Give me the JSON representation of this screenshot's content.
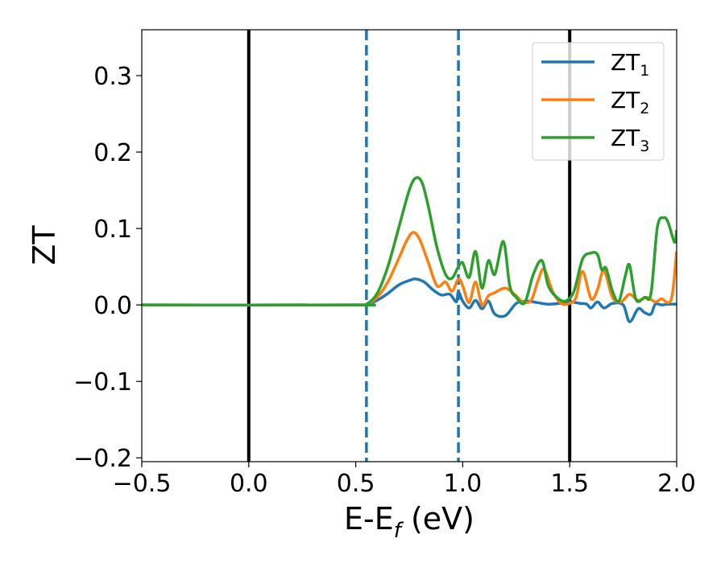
{
  "chart_data": {
    "type": "line",
    "xlabel": "E-E",
    "xlabel_sub": "f",
    "xlabel_unit": " (eV)",
    "ylabel": "ZT",
    "xlim": [
      -0.5,
      2.0
    ],
    "ylim": [
      -0.205,
      0.36
    ],
    "xticks": [
      -0.5,
      0.0,
      0.5,
      1.0,
      1.5,
      2.0
    ],
    "xtick_labels": [
      "−0.5",
      "0.0",
      "0.5",
      "1.0",
      "1.5",
      "2.0"
    ],
    "yticks": [
      -0.2,
      -0.1,
      0.0,
      0.1,
      0.2,
      0.3
    ],
    "ytick_labels": [
      "−0.2",
      "−0.1",
      "0.0",
      "0.1",
      "0.2",
      "0.3"
    ],
    "grid": false,
    "legend_position": "top-right",
    "vlines": [
      {
        "x": 0.0,
        "style": "solid",
        "color": "#000000"
      },
      {
        "x": 1.5,
        "style": "solid",
        "color": "#000000"
      },
      {
        "x": 0.55,
        "style": "dashed",
        "color": "#1f77b4"
      },
      {
        "x": 0.98,
        "style": "dashed",
        "color": "#1f77b4"
      }
    ],
    "series": [
      {
        "name": "ZT",
        "name_sub": "1",
        "color": "#1f77b4",
        "x": [
          -0.5,
          0.5,
          0.55,
          0.6,
          0.65,
          0.7,
          0.75,
          0.78,
          0.82,
          0.86,
          0.9,
          0.94,
          0.97,
          0.98,
          1.0,
          1.03,
          1.06,
          1.09,
          1.12,
          1.15,
          1.2,
          1.25,
          1.3,
          1.35,
          1.4,
          1.45,
          1.5,
          1.55,
          1.58,
          1.6,
          1.63,
          1.66,
          1.7,
          1.75,
          1.78,
          1.82,
          1.85,
          1.88,
          1.9,
          1.93,
          1.96,
          2.0
        ],
        "y": [
          0.0,
          0.0,
          0.001,
          0.006,
          0.015,
          0.026,
          0.032,
          0.034,
          0.03,
          0.02,
          0.013,
          0.014,
          0.004,
          0.017,
          0.005,
          -0.004,
          0.006,
          -0.005,
          0.005,
          -0.012,
          -0.014,
          0.002,
          0.005,
          0.003,
          0.001,
          0.002,
          0.004,
          0.002,
          0.001,
          -0.004,
          0.004,
          -0.004,
          0.002,
          0.0,
          -0.022,
          -0.005,
          -0.01,
          -0.012,
          0.001,
          0.0,
          0.001,
          0.001
        ]
      },
      {
        "name": "ZT",
        "name_sub": "2",
        "color": "#ff7f0e",
        "x": [
          -0.5,
          0.5,
          0.55,
          0.6,
          0.65,
          0.7,
          0.74,
          0.77,
          0.8,
          0.84,
          0.88,
          0.92,
          0.95,
          0.98,
          1.0,
          1.03,
          1.06,
          1.09,
          1.12,
          1.15,
          1.2,
          1.25,
          1.28,
          1.32,
          1.35,
          1.38,
          1.42,
          1.46,
          1.5,
          1.53,
          1.56,
          1.6,
          1.63,
          1.66,
          1.7,
          1.74,
          1.78,
          1.82,
          1.86,
          1.9,
          1.93,
          1.96,
          1.98,
          2.0
        ],
        "y": [
          0.0,
          0.0,
          0.001,
          0.01,
          0.03,
          0.06,
          0.085,
          0.095,
          0.085,
          0.055,
          0.025,
          0.03,
          0.018,
          0.034,
          0.025,
          0.003,
          0.03,
          0.0,
          0.012,
          0.016,
          0.022,
          0.012,
          0.004,
          0.006,
          0.03,
          0.047,
          0.018,
          0.002,
          0.002,
          0.01,
          0.044,
          0.008,
          0.02,
          0.045,
          0.01,
          0.004,
          0.014,
          0.006,
          0.01,
          0.004,
          0.008,
          0.003,
          0.014,
          0.07
        ]
      },
      {
        "name": "ZT",
        "name_sub": "3",
        "color": "#2ca02c",
        "x": [
          -0.5,
          0.5,
          0.55,
          0.6,
          0.65,
          0.7,
          0.75,
          0.78,
          0.81,
          0.84,
          0.88,
          0.92,
          0.95,
          0.98,
          1.0,
          1.03,
          1.06,
          1.09,
          1.12,
          1.15,
          1.19,
          1.22,
          1.25,
          1.29,
          1.33,
          1.37,
          1.4,
          1.44,
          1.48,
          1.52,
          1.56,
          1.6,
          1.63,
          1.65,
          1.67,
          1.7,
          1.73,
          1.76,
          1.78,
          1.81,
          1.85,
          1.88,
          1.91,
          1.94,
          1.96,
          1.99,
          2.0
        ],
        "y": [
          0.0,
          0.0,
          0.001,
          0.015,
          0.05,
          0.1,
          0.15,
          0.166,
          0.16,
          0.128,
          0.075,
          0.04,
          0.035,
          0.05,
          0.055,
          0.036,
          0.07,
          0.022,
          0.058,
          0.04,
          0.083,
          0.025,
          0.01,
          0.003,
          0.04,
          0.058,
          0.025,
          0.01,
          0.005,
          0.018,
          0.06,
          0.068,
          0.066,
          0.046,
          0.048,
          0.018,
          0.005,
          0.038,
          0.052,
          0.007,
          0.01,
          0.015,
          0.102,
          0.114,
          0.108,
          0.082,
          0.098
        ]
      }
    ]
  }
}
